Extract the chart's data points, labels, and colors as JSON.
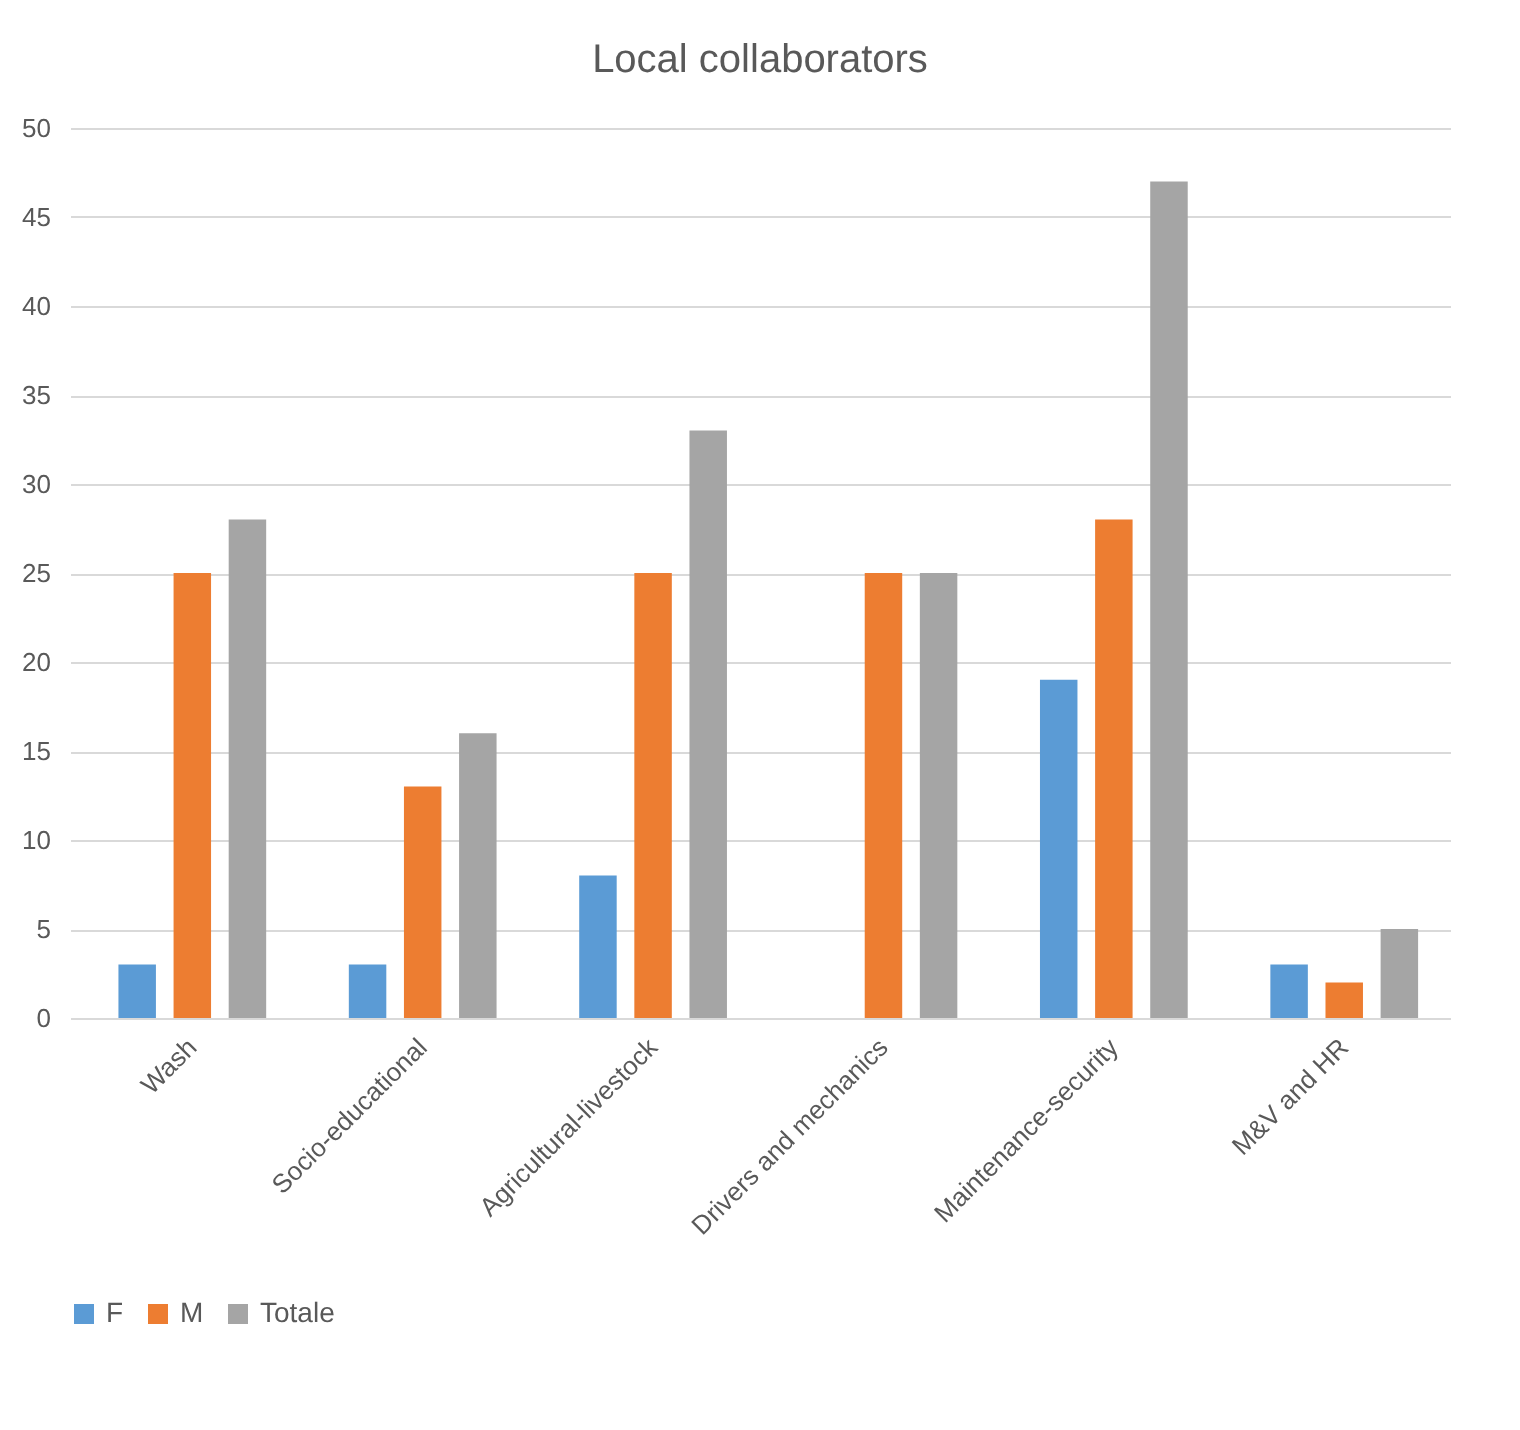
{
  "chart_data": {
    "type": "bar",
    "title": "Local collaborators",
    "categories": [
      "Wash",
      "Socio-educational",
      "Agricultural-livestock",
      "Drivers and mechanics",
      "Maintenance-security",
      "M&V and HR"
    ],
    "series": [
      {
        "name": "F",
        "color": "#5b9bd5",
        "values": [
          3,
          3,
          8,
          0,
          19,
          3
        ]
      },
      {
        "name": "M",
        "color": "#ed7d31",
        "values": [
          25,
          13,
          25,
          25,
          28,
          2
        ]
      },
      {
        "name": "Totale",
        "color": "#a5a5a5",
        "values": [
          28,
          16,
          33,
          25,
          47,
          5
        ]
      }
    ],
    "ylim": [
      0,
      50
    ],
    "yticks": [
      0,
      5,
      10,
      15,
      20,
      25,
      30,
      35,
      40,
      45,
      50
    ],
    "grid": "y",
    "legend": "bottom"
  }
}
